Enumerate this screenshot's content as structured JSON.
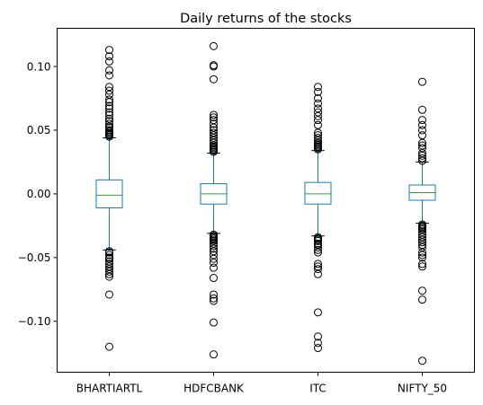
{
  "chart_data": {
    "type": "boxplot",
    "title": "Daily returns of the stocks",
    "xlabel": "",
    "ylabel": "",
    "ylim": [
      -0.14,
      0.13
    ],
    "yticks": [
      -0.1,
      -0.05,
      0.0,
      0.05,
      0.1
    ],
    "ytick_labels": [
      "−0.10",
      "−0.05",
      "0.00",
      "0.05",
      "0.10"
    ],
    "grid": false,
    "categories": [
      "BHARTIARTL",
      "HDFCBANK",
      "ITC",
      "NIFTY_50"
    ],
    "colors": {
      "box": "#1f77b4",
      "median": "#2ca02c",
      "flier": "#000000"
    },
    "boxes": [
      {
        "name": "BHARTIARTL",
        "whisker_low": -0.044,
        "q1": -0.011,
        "median": -0.001,
        "q3": 0.011,
        "whisker_high": 0.044,
        "fliers_high": [
          0.113,
          0.108,
          0.104,
          0.097,
          0.093,
          0.084,
          0.081,
          0.078,
          0.074,
          0.072,
          0.069,
          0.067,
          0.064,
          0.062,
          0.059,
          0.057,
          0.055,
          0.053,
          0.052,
          0.05,
          0.049,
          0.048,
          0.047,
          0.046,
          0.045
        ],
        "fliers_low": [
          -0.045,
          -0.046,
          -0.048,
          -0.05,
          -0.051,
          -0.053,
          -0.055,
          -0.057,
          -0.059,
          -0.061,
          -0.063,
          -0.065,
          -0.079,
          -0.12
        ]
      },
      {
        "name": "HDFCBANK",
        "whisker_low": -0.031,
        "q1": -0.008,
        "median": 0.0,
        "q3": 0.008,
        "whisker_high": 0.032,
        "fliers_high": [
          0.116,
          0.101,
          0.1,
          0.09,
          0.062,
          0.06,
          0.058,
          0.055,
          0.052,
          0.05,
          0.048,
          0.046,
          0.044,
          0.042,
          0.04,
          0.038,
          0.037,
          0.036,
          0.035,
          0.034,
          0.033
        ],
        "fliers_low": [
          -0.032,
          -0.033,
          -0.034,
          -0.035,
          -0.036,
          -0.037,
          -0.039,
          -0.041,
          -0.043,
          -0.045,
          -0.048,
          -0.051,
          -0.054,
          -0.058,
          -0.066,
          -0.079,
          -0.082,
          -0.084,
          -0.101,
          -0.126
        ]
      },
      {
        "name": "ITC",
        "whisker_low": -0.033,
        "q1": -0.008,
        "median": 0.0,
        "q3": 0.009,
        "whisker_high": 0.034,
        "fliers_high": [
          0.084,
          0.08,
          0.075,
          0.071,
          0.067,
          0.064,
          0.061,
          0.058,
          0.054,
          0.048,
          0.046,
          0.044,
          0.042,
          0.04,
          0.039,
          0.038,
          0.037,
          0.036,
          0.035
        ],
        "fliers_low": [
          -0.034,
          -0.035,
          -0.036,
          -0.037,
          -0.039,
          -0.04,
          -0.042,
          -0.044,
          -0.046,
          -0.055,
          -0.057,
          -0.059,
          -0.063,
          -0.093,
          -0.112,
          -0.117,
          -0.121
        ]
      },
      {
        "name": "NIFTY_50",
        "whisker_low": -0.023,
        "q1": -0.005,
        "median": 0.001,
        "q3": 0.007,
        "whisker_high": 0.025,
        "fliers_high": [
          0.088,
          0.066,
          0.058,
          0.054,
          0.05,
          0.046,
          0.04,
          0.038,
          0.036,
          0.032,
          0.03,
          0.028,
          0.026
        ],
        "fliers_low": [
          -0.024,
          -0.025,
          -0.026,
          -0.027,
          -0.028,
          -0.03,
          -0.032,
          -0.034,
          -0.036,
          -0.038,
          -0.04,
          -0.042,
          -0.046,
          -0.048,
          -0.05,
          -0.055,
          -0.057,
          -0.076,
          -0.083,
          -0.131
        ]
      }
    ]
  }
}
